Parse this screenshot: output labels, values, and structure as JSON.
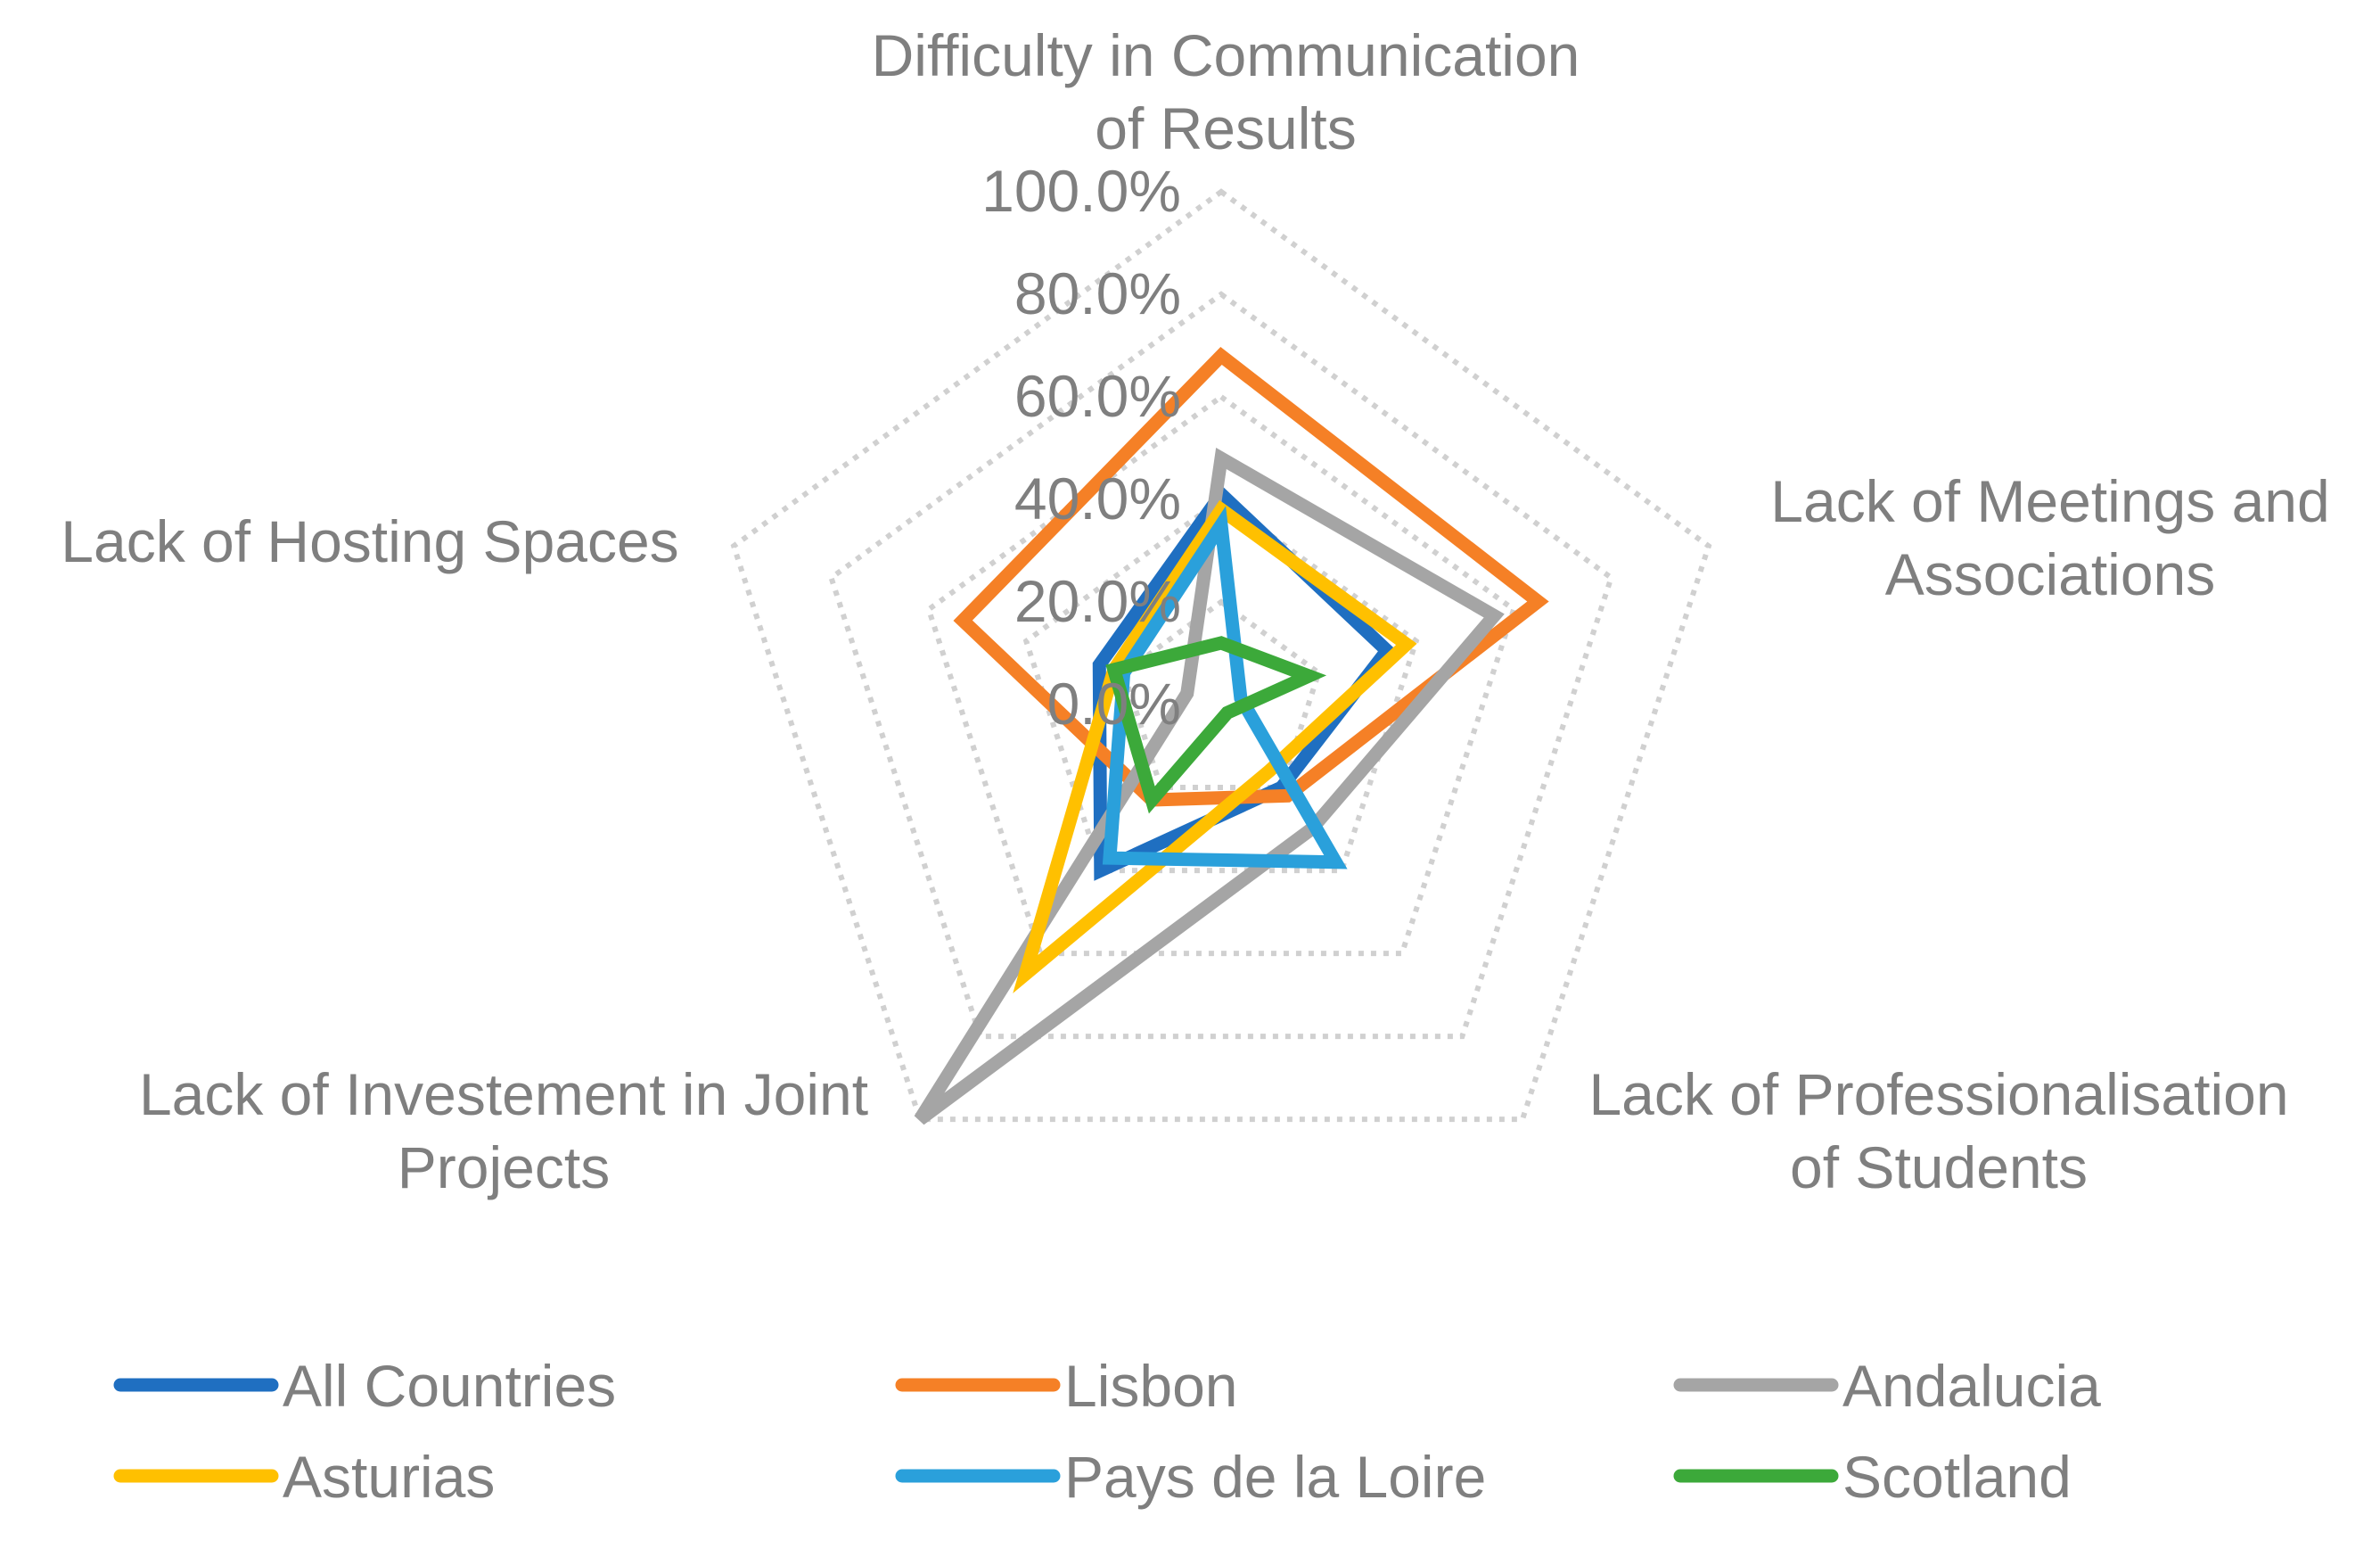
{
  "chart_data": {
    "type": "radar",
    "title": "",
    "axes": [
      "Difficulty in Communication of Results",
      "Lack of Meetings and Associations",
      "Lack of Professionalisation of Students",
      "Lack of Investement in Joint Projects",
      "Lack of Hosting Spaces"
    ],
    "axis_label_lines": [
      [
        "Difficulty in Communication",
        "of Results"
      ],
      [
        "Lack of Meetings and",
        "Associations"
      ],
      [
        "Lack of Professionalisation",
        "of Students"
      ],
      [
        "Lack of Investement in Joint",
        "Projects"
      ],
      [
        "Lack of Hosting Spaces"
      ]
    ],
    "rlim": [
      0,
      100
    ],
    "ticks": [
      "0.0%",
      "20.0%",
      "40.0%",
      "60.0%",
      "80.0%",
      "100.0%"
    ],
    "tick_values": [
      0,
      20,
      40,
      60,
      80,
      100
    ],
    "grid": true,
    "legend_position": "bottom",
    "series": [
      {
        "name": "All Countries",
        "color": "#1f6fc1",
        "values": [
          41,
          34,
          20,
          40,
          25
        ]
      },
      {
        "name": "Lisbon",
        "color": "#f58026",
        "values": [
          68,
          65,
          22,
          23,
          53
        ]
      },
      {
        "name": "Andalucia",
        "color": "#a5a5a5",
        "values": [
          48,
          56,
          30,
          100,
          7
        ]
      },
      {
        "name": "Asturias",
        "color": "#ffc000",
        "values": [
          38,
          38,
          16,
          65,
          22
        ]
      },
      {
        "name": "Pays de la Loire",
        "color": "#2aa0db",
        "values": [
          35,
          4,
          38,
          37,
          20
        ]
      },
      {
        "name": "Scotland",
        "color": "#3ca93a",
        "values": [
          12,
          18,
          2,
          23,
          22
        ]
      }
    ]
  }
}
